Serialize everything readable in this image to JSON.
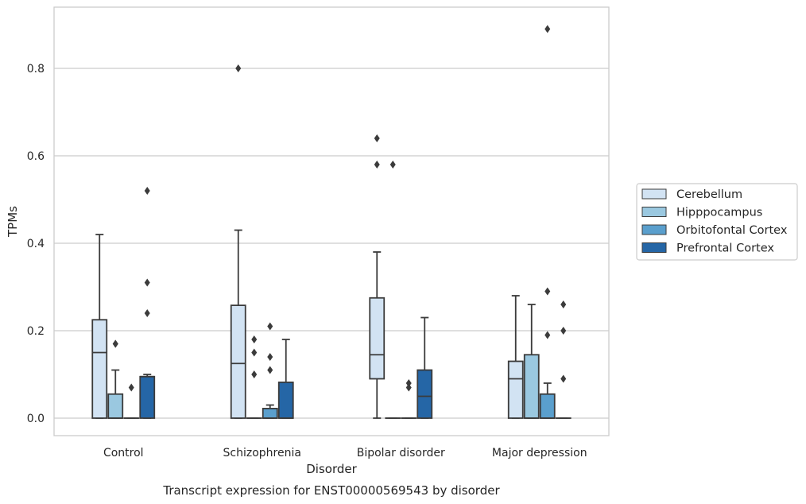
{
  "chart_data": {
    "type": "boxplot",
    "caption": "Transcript expression for ENST00000569543 by disorder",
    "xlabel": "Disorder",
    "ylabel": "TPMs",
    "ylim": [
      -0.04,
      0.94
    ],
    "yticks": [
      0.0,
      0.2,
      0.4,
      0.6,
      0.8
    ],
    "ytick_labels": [
      "0.0",
      "0.2",
      "0.4",
      "0.6",
      "0.8"
    ],
    "grid": "horizontal",
    "legend_position": "right",
    "categories": [
      "Control",
      "Schizophrenia",
      "Bipolar disorder",
      "Major depression"
    ],
    "series": [
      {
        "name": "Cerebellum",
        "color": "#d2e3f3",
        "boxes": [
          {
            "whislo": 0.0,
            "q1": 0.0,
            "med": 0.15,
            "q3": 0.225,
            "whishi": 0.42,
            "fliers": []
          },
          {
            "whislo": 0.0,
            "q1": 0.0,
            "med": 0.125,
            "q3": 0.258,
            "whishi": 0.43,
            "fliers": [
              0.8
            ]
          },
          {
            "whislo": 0.0,
            "q1": 0.09,
            "med": 0.145,
            "q3": 0.275,
            "whishi": 0.38,
            "fliers": [
              0.64,
              0.58
            ]
          },
          {
            "whislo": 0.0,
            "q1": 0.0,
            "med": 0.09,
            "q3": 0.13,
            "whishi": 0.28,
            "fliers": []
          }
        ]
      },
      {
        "name": "Hipppocampus",
        "color": "#9ac8e0",
        "boxes": [
          {
            "whislo": 0.0,
            "q1": 0.0,
            "med": 0.0,
            "q3": 0.055,
            "whishi": 0.11,
            "fliers": [
              0.17,
              0.17
            ]
          },
          {
            "whislo": 0.0,
            "q1": 0.0,
            "med": 0.0,
            "q3": 0.0,
            "whishi": 0.0,
            "fliers": [
              0.18,
              0.15,
              0.1
            ]
          },
          {
            "whislo": 0.0,
            "q1": 0.0,
            "med": 0.0,
            "q3": 0.0,
            "whishi": 0.0,
            "fliers": [
              0.58
            ]
          },
          {
            "whislo": 0.0,
            "q1": 0.0,
            "med": 0.0,
            "q3": 0.145,
            "whishi": 0.26,
            "fliers": []
          }
        ]
      },
      {
        "name": "Orbitofontal Cortex",
        "color": "#5a9fcd",
        "boxes": [
          {
            "whislo": 0.0,
            "q1": 0.0,
            "med": 0.0,
            "q3": 0.0,
            "whishi": 0.0,
            "fliers": [
              0.07
            ]
          },
          {
            "whislo": 0.0,
            "q1": 0.0,
            "med": 0.0,
            "q3": 0.022,
            "whishi": 0.03,
            "fliers": [
              0.21,
              0.14,
              0.11
            ]
          },
          {
            "whislo": 0.0,
            "q1": 0.0,
            "med": 0.0,
            "q3": 0.0,
            "whishi": 0.0,
            "fliers": [
              0.08,
              0.07
            ]
          },
          {
            "whislo": 0.0,
            "q1": 0.0,
            "med": 0.0,
            "q3": 0.055,
            "whishi": 0.08,
            "fliers": [
              0.29,
              0.19,
              0.89
            ]
          }
        ]
      },
      {
        "name": "Prefrontal Cortex",
        "color": "#2566a6",
        "boxes": [
          {
            "whislo": 0.0,
            "q1": 0.0,
            "med": 0.095,
            "q3": 0.095,
            "whishi": 0.1,
            "fliers": [
              0.52,
              0.31,
              0.24
            ]
          },
          {
            "whislo": 0.0,
            "q1": 0.0,
            "med": 0.0,
            "q3": 0.082,
            "whishi": 0.18,
            "fliers": []
          },
          {
            "whislo": 0.0,
            "q1": 0.0,
            "med": 0.05,
            "q3": 0.11,
            "whishi": 0.23,
            "fliers": []
          },
          {
            "whislo": 0.0,
            "q1": 0.0,
            "med": 0.0,
            "q3": 0.0,
            "whishi": 0.0,
            "fliers": [
              0.26,
              0.2,
              0.09
            ]
          }
        ]
      }
    ]
  }
}
